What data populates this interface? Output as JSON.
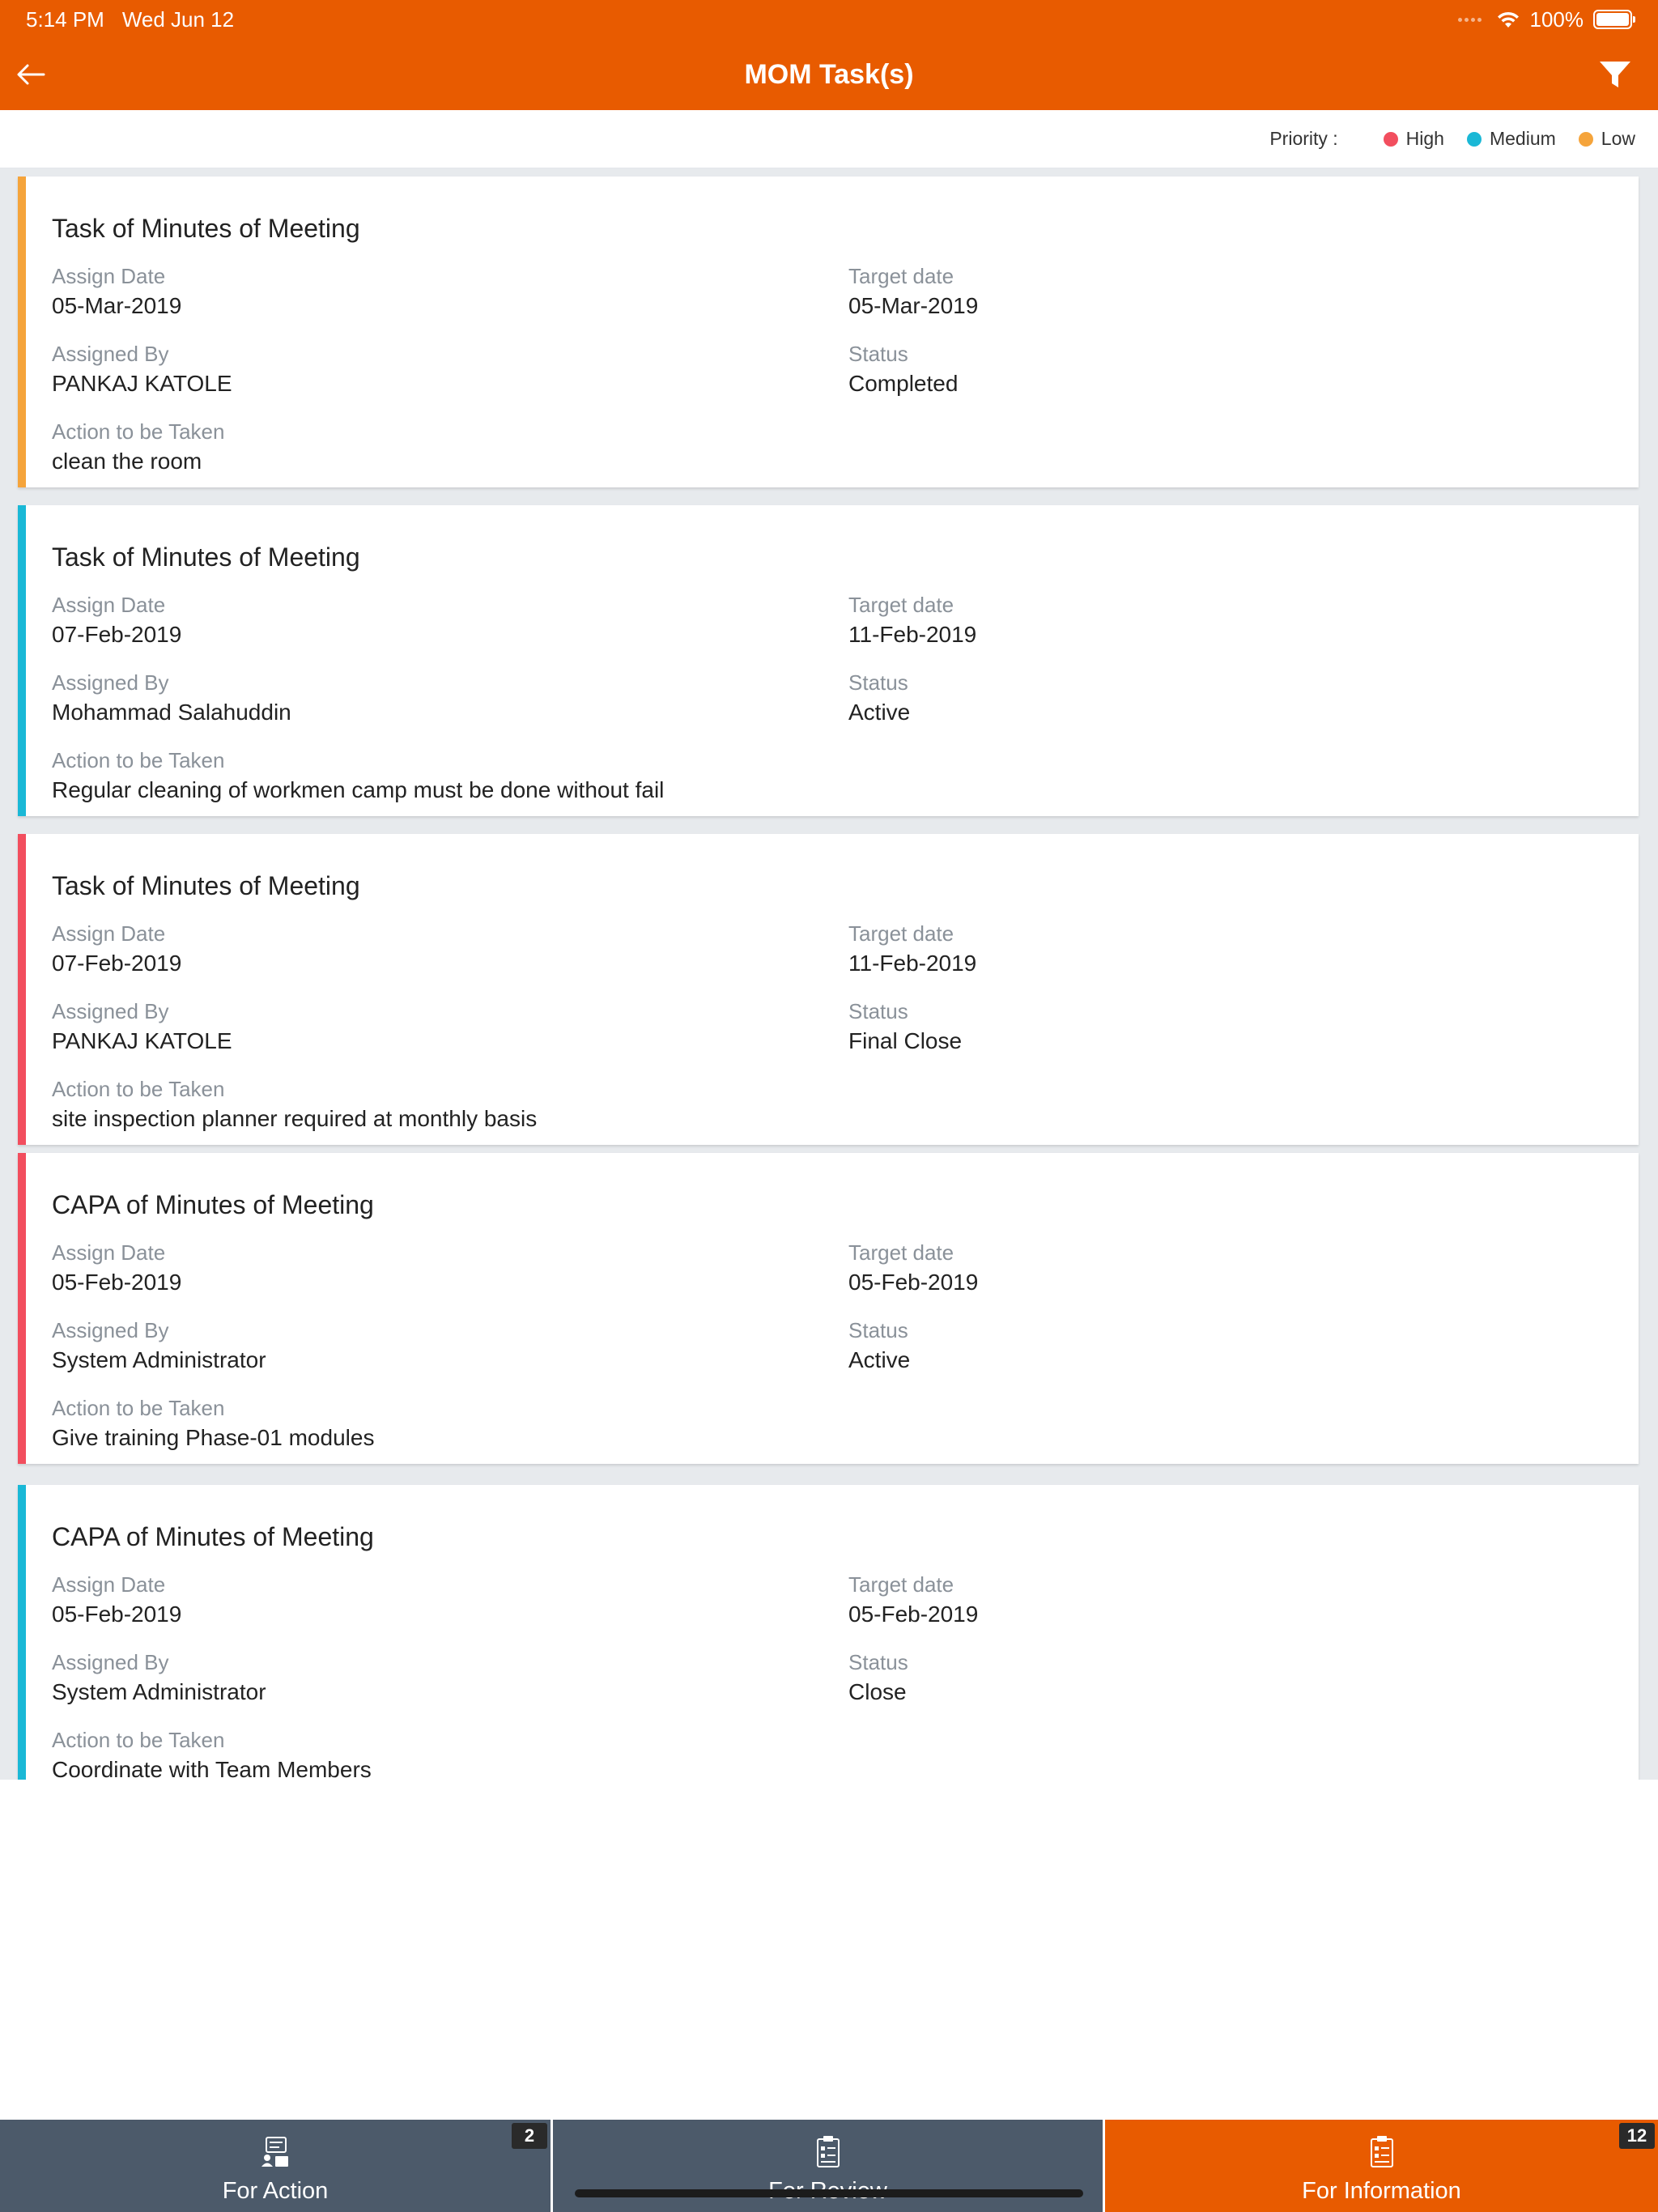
{
  "status_bar": {
    "time": "5:14 PM",
    "date": "Wed Jun 12",
    "battery": "100%"
  },
  "header": {
    "title": "MOM Task(s)",
    "back_icon": "arrow-left-icon",
    "filter_icon": "filter-icon"
  },
  "legend": {
    "label": "Priority :",
    "items": [
      {
        "label": "High",
        "color": "#f24e5e"
      },
      {
        "label": "Medium",
        "color": "#1ab8d6"
      },
      {
        "label": "Low",
        "color": "#f5a43b"
      }
    ]
  },
  "field_labels": {
    "assign_date": "Assign Date",
    "target_date": "Target date",
    "assigned_by": "Assigned By",
    "status": "Status",
    "action": "Action to be Taken"
  },
  "tasks": [
    {
      "title": "Task of Minutes of Meeting",
      "assign_date": "05-Mar-2019",
      "target_date": "05-Mar-2019",
      "assigned_by": "PANKAJ KATOLE",
      "status": "Completed",
      "action": "clean the room",
      "priority": "Low",
      "color": "#f5a43b"
    },
    {
      "title": "Task of Minutes of Meeting",
      "assign_date": "07-Feb-2019",
      "target_date": "11-Feb-2019",
      "assigned_by": "Mohammad Salahuddin",
      "status": "Active",
      "action": "Regular cleaning of workmen camp must be done without fail",
      "priority": "Medium",
      "color": "#1ab8d6"
    },
    {
      "title": "Task of Minutes of Meeting",
      "assign_date": "07-Feb-2019",
      "target_date": "11-Feb-2019",
      "assigned_by": "PANKAJ KATOLE",
      "status": "Final Close",
      "action": "site inspection planner required at monthly basis",
      "priority": "High",
      "color": "#f24e5e"
    },
    {
      "title": "CAPA of Minutes of Meeting",
      "assign_date": "05-Feb-2019",
      "target_date": "05-Feb-2019",
      "assigned_by": "System Administrator",
      "status": "Active",
      "action": "Give training Phase-01 modules",
      "priority": "High",
      "color": "#f24e5e"
    },
    {
      "title": "CAPA of Minutes of Meeting",
      "assign_date": "05-Feb-2019",
      "target_date": "05-Feb-2019",
      "assigned_by": "System Administrator",
      "status": "Close",
      "action": "Coordinate with Team Members",
      "priority": "Medium",
      "color": "#1ab8d6"
    }
  ],
  "tabs": [
    {
      "label": "For Action",
      "badge": "2",
      "icon": "action-list-icon"
    },
    {
      "label": "For Review",
      "badge": "",
      "icon": "review-clipboard-icon"
    },
    {
      "label": "For Information",
      "badge": "12",
      "icon": "info-clipboard-icon"
    }
  ],
  "colors": {
    "brand": "#e85b00",
    "tab_inactive": "#4c5a6a"
  }
}
